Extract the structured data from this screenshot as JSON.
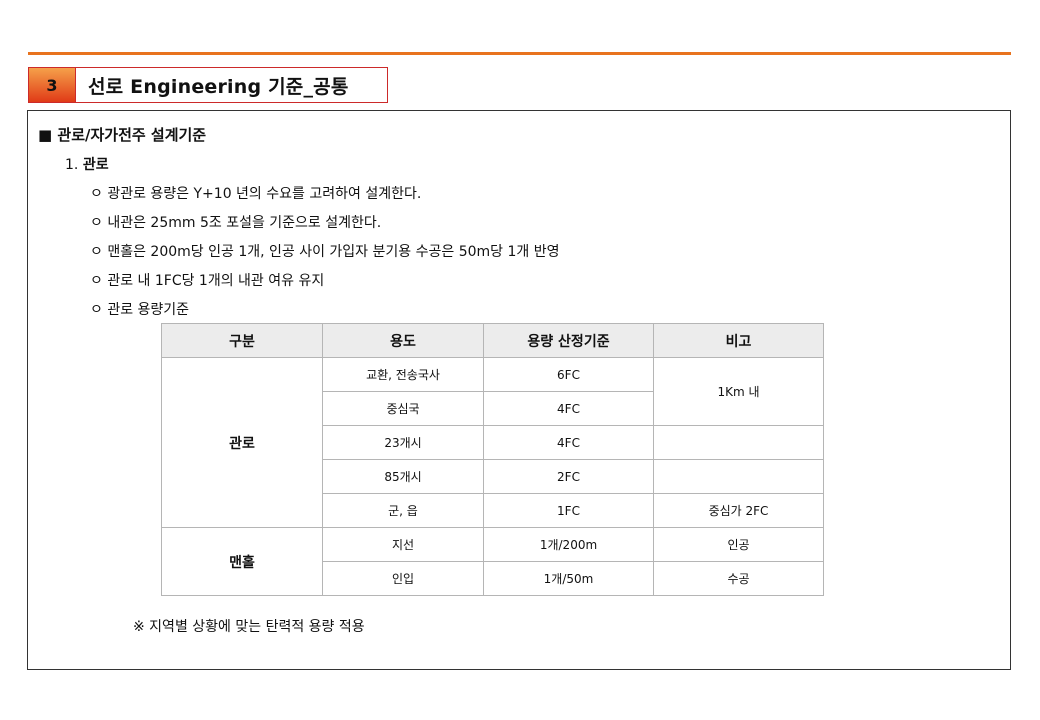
{
  "section": {
    "number": "3",
    "title": "선로 Engineering 기준_공통"
  },
  "heading": "■ 관로/자가전주 설계기준",
  "subheading": {
    "number": "1.",
    "title": "관로"
  },
  "bullets": [
    "ㅇ 광관로 용량은 Y+10 년의 수요를 고려하여 설계한다.",
    "ㅇ 내관은 25mm 5조 포설을 기준으로 설계한다.",
    "ㅇ 맨홀은 200m당 인공 1개, 인공 사이 가입자 분기용 수공은 50m당 1개 반영",
    "ㅇ 관로 내 1FC당 1개의 내관 여유 유지",
    "ㅇ 관로 용량기준"
  ],
  "table": {
    "headers": [
      "구분",
      "용도",
      "용량 산정기준",
      "비고"
    ],
    "groups": [
      "관로",
      "맨홀"
    ],
    "rows": [
      {
        "use": "교환, 전송국사",
        "capacity": "6FC",
        "note": "1Km 내"
      },
      {
        "use": "중심국",
        "capacity": "4FC",
        "note": ""
      },
      {
        "use": "23개시",
        "capacity": "4FC",
        "note": ""
      },
      {
        "use": "85개시",
        "capacity": "2FC",
        "note": ""
      },
      {
        "use": "군, 읍",
        "capacity": "1FC",
        "note": "중심가 2FC"
      },
      {
        "use": "지선",
        "capacity": "1개/200m",
        "note": "인공"
      },
      {
        "use": "인입",
        "capacity": "1개/50m",
        "note": "수공"
      }
    ]
  },
  "footnote": "※ 지역별 상황에 맞는 탄력적 용량 적용",
  "colors": {
    "accent": "#e8731e",
    "header_border": "#cc2a2a"
  }
}
